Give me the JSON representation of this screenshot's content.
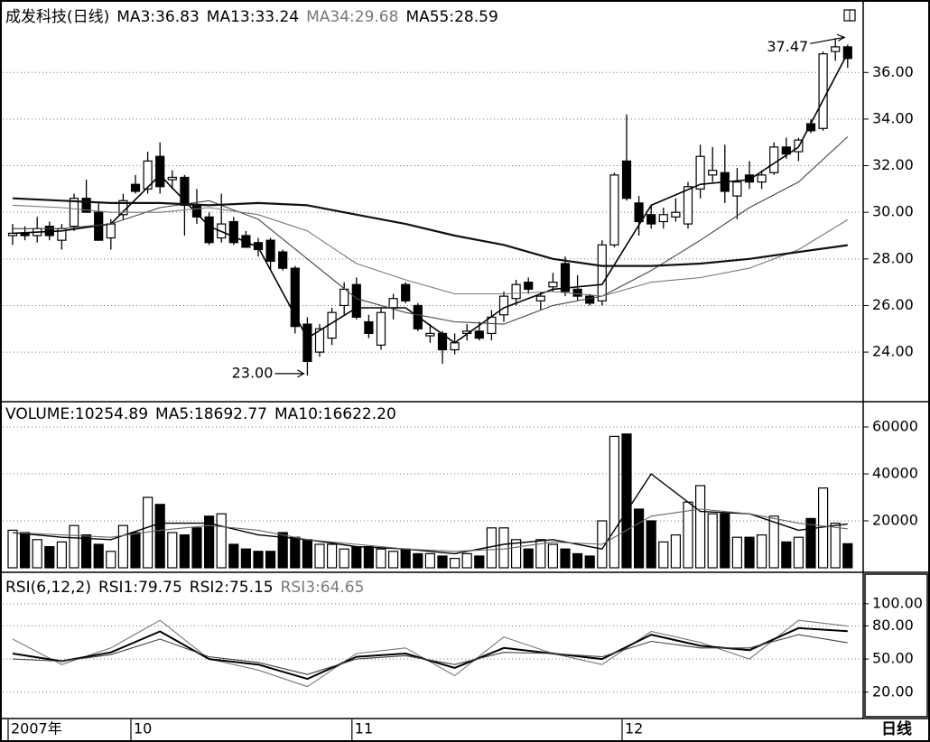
{
  "chart_data": [
    {
      "type": "candlestick",
      "title": "成发科技(日线)",
      "ylim": [
        21.95,
        38.8
      ],
      "grid": true,
      "yticks": [
        {
          "value": 24,
          "label": "24.00"
        },
        {
          "value": 26,
          "label": "26.00"
        },
        {
          "value": 28,
          "label": "28.00"
        },
        {
          "value": 30,
          "label": "30.00"
        },
        {
          "value": 32,
          "label": "32.00"
        },
        {
          "value": 34,
          "label": "34.00"
        },
        {
          "value": 36,
          "label": "36.00"
        }
      ],
      "up_color": "#ffffff",
      "down_color": "#000000",
      "open": [
        29.0,
        29.1,
        29.0,
        29.4,
        28.8,
        29.4,
        30.6,
        30.0,
        28.9,
        29.9,
        31.2,
        31.0,
        32.4,
        31.4,
        31.5,
        30.3,
        29.8,
        28.9,
        29.6,
        29.0,
        28.7,
        28.8,
        28.3,
        27.6,
        25.2,
        24.0,
        24.6,
        26.0,
        26.9,
        25.3,
        24.3,
        25.9,
        26.9,
        26.0,
        24.7,
        24.8,
        24.1,
        24.8,
        24.9,
        24.8,
        25.6,
        26.3,
        27.0,
        26.2,
        26.8,
        27.8,
        26.7,
        26.4,
        26.2,
        28.6,
        32.2,
        30.4,
        29.9,
        29.6,
        29.8,
        29.5,
        31.0,
        31.6,
        31.7,
        30.7,
        31.6,
        31.3,
        31.7,
        32.8,
        32.6,
        33.8,
        33.6,
        36.9,
        37.1
      ],
      "high": [
        29.5,
        29.4,
        29.8,
        29.6,
        29.5,
        30.8,
        31.4,
        30.4,
        29.7,
        30.8,
        31.6,
        32.6,
        33.0,
        31.8,
        31.6,
        31.0,
        30.0,
        30.8,
        29.8,
        29.2,
        28.9,
        28.9,
        28.4,
        27.7,
        25.5,
        25.2,
        25.9,
        27.0,
        27.2,
        25.6,
        25.9,
        26.5,
        27.0,
        26.1,
        25.2,
        24.9,
        24.8,
        25.2,
        25.3,
        25.8,
        26.6,
        27.1,
        27.2,
        26.6,
        27.4,
        28.1,
        27.3,
        26.5,
        28.8,
        31.7,
        34.2,
        30.7,
        30.3,
        30.2,
        30.6,
        31.3,
        32.9,
        32.8,
        32.9,
        31.9,
        32.2,
        31.8,
        33.0,
        33.2,
        33.2,
        34.0,
        36.9,
        37.47,
        37.2
      ],
      "low": [
        28.6,
        28.8,
        28.7,
        28.8,
        28.4,
        29.2,
        30.0,
        28.8,
        28.4,
        29.7,
        30.8,
        30.8,
        30.8,
        31.0,
        29.0,
        29.5,
        28.6,
        28.7,
        28.6,
        28.5,
        28.1,
        27.5,
        27.5,
        24.8,
        23.0,
        23.8,
        24.3,
        25.6,
        25.4,
        24.6,
        24.1,
        25.4,
        26.1,
        24.9,
        24.4,
        23.5,
        23.9,
        24.5,
        24.5,
        24.5,
        25.3,
        26.0,
        26.5,
        25.8,
        26.6,
        26.4,
        26.2,
        26.0,
        26.0,
        28.5,
        30.5,
        29.0,
        29.3,
        29.3,
        29.6,
        29.3,
        30.6,
        31.3,
        30.4,
        29.7,
        31.0,
        31.0,
        31.6,
        32.3,
        32.2,
        33.4,
        33.5,
        36.5,
        36.2
      ],
      "close": [
        29.1,
        29.0,
        29.3,
        29.0,
        29.3,
        30.6,
        30.0,
        28.8,
        29.5,
        30.5,
        30.9,
        32.2,
        31.1,
        31.5,
        30.3,
        29.8,
        28.7,
        29.5,
        28.7,
        28.5,
        28.4,
        27.9,
        27.6,
        25.1,
        23.6,
        25.0,
        25.7,
        26.7,
        25.5,
        24.8,
        25.7,
        26.3,
        26.2,
        25.0,
        24.8,
        24.1,
        24.4,
        24.9,
        24.6,
        25.5,
        26.4,
        26.9,
        26.7,
        26.4,
        27.0,
        26.6,
        26.4,
        26.1,
        28.6,
        31.6,
        30.6,
        29.6,
        29.5,
        29.9,
        30.0,
        31.1,
        32.4,
        31.8,
        30.9,
        31.3,
        31.3,
        31.6,
        32.8,
        32.5,
        33.1,
        33.5,
        36.8,
        37.1,
        36.6
      ],
      "lines": [
        {
          "label": "MA3:36.83",
          "color": "#000000",
          "width": 1.6,
          "x": [
            0,
            4,
            8,
            12,
            16,
            20,
            24,
            28,
            32,
            36,
            40,
            44,
            48,
            52,
            56,
            60,
            64,
            68
          ],
          "values": [
            29.1,
            29.2,
            29.5,
            31.6,
            29.4,
            28.5,
            24.6,
            25.9,
            25.9,
            24.4,
            25.9,
            26.7,
            26.9,
            30.3,
            31.2,
            31.4,
            32.8,
            36.83
          ]
        },
        {
          "label": "MA13:33.24",
          "color": "#444444",
          "width": 1.1,
          "x": [
            0,
            4,
            8,
            12,
            16,
            20,
            24,
            28,
            32,
            36,
            40,
            44,
            48,
            52,
            56,
            60,
            64,
            68
          ],
          "values": [
            29.3,
            29.3,
            29.5,
            30.2,
            30.5,
            29.7,
            28.0,
            26.3,
            25.7,
            25.3,
            25.2,
            26.0,
            26.4,
            27.5,
            28.8,
            30.2,
            31.3,
            33.24
          ]
        },
        {
          "label": "MA34:29.68",
          "color": "#777777",
          "width": 1.1,
          "x": [
            0,
            4,
            8,
            12,
            16,
            20,
            24,
            28,
            32,
            36,
            40,
            44,
            48,
            52,
            56,
            60,
            64,
            68
          ],
          "values": [
            30.3,
            30.2,
            30.0,
            30.0,
            30.2,
            29.9,
            29.2,
            27.8,
            27.1,
            26.5,
            26.5,
            26.6,
            26.4,
            27.0,
            27.2,
            27.6,
            28.4,
            29.68
          ]
        },
        {
          "label": "MA55:28.59",
          "color": "#111111",
          "width": 2.2,
          "x": [
            0,
            4,
            8,
            12,
            16,
            20,
            24,
            28,
            32,
            36,
            40,
            44,
            48,
            52,
            56,
            60,
            64,
            68
          ],
          "values": [
            30.6,
            30.5,
            30.4,
            30.4,
            30.3,
            30.4,
            30.3,
            29.9,
            29.5,
            29.0,
            28.6,
            28.0,
            27.7,
            27.7,
            27.8,
            28.0,
            28.3,
            28.59
          ]
        }
      ],
      "label_colors": [
        "#000000",
        "#000000",
        "#777777",
        "#000000"
      ],
      "annotations": [
        {
          "index": 24,
          "value": 23,
          "label": "23.00",
          "side": "left"
        },
        {
          "index": 67,
          "value": 37.47,
          "label": "37.47",
          "side": "above"
        }
      ]
    },
    {
      "type": "bar",
      "title": "VOLUME:10254.89",
      "ylim": [
        0,
        70000
      ],
      "grid": true,
      "yticks": [
        20000,
        40000,
        60000
      ],
      "values": [
        16000,
        15000,
        12000,
        9000,
        11000,
        18000,
        14000,
        10000,
        7000,
        18000,
        15000,
        30000,
        27000,
        15000,
        14000,
        17000,
        22000,
        23000,
        10000,
        8000,
        7000,
        7000,
        15000,
        13000,
        12000,
        10000,
        10000,
        8000,
        9000,
        9000,
        8000,
        7000,
        8000,
        6000,
        6000,
        5000,
        4000,
        6000,
        5000,
        17000,
        17000,
        12000,
        8000,
        12000,
        10000,
        8000,
        6000,
        5000,
        20000,
        56000,
        57000,
        25000,
        20000,
        11000,
        14000,
        28000,
        35000,
        23000,
        23000,
        13000,
        13000,
        14000,
        22000,
        11000,
        13000,
        21000,
        34000,
        19000,
        10254.89
      ],
      "lines": [
        {
          "label": "MA5:18692.77",
          "color": "#000000",
          "width": 1.4,
          "x": [
            0,
            4,
            8,
            12,
            16,
            20,
            24,
            28,
            32,
            36,
            40,
            44,
            48,
            52,
            56,
            60,
            64,
            68
          ],
          "values": [
            15000,
            13000,
            12000,
            19000,
            19000,
            14000,
            12000,
            9000,
            8000,
            6000,
            10000,
            12000,
            8000,
            40000,
            24000,
            23000,
            16000,
            18692.77
          ]
        },
        {
          "label": "MA10:16622.20",
          "color": "#666666",
          "width": 1.1,
          "x": [
            0,
            4,
            8,
            12,
            16,
            20,
            24,
            28,
            32,
            36,
            40,
            44,
            48,
            52,
            56,
            60,
            64,
            68
          ],
          "values": [
            15000,
            14000,
            13000,
            16000,
            18000,
            16000,
            12000,
            10000,
            8000,
            7000,
            8000,
            11000,
            10000,
            22000,
            25000,
            23000,
            19000,
            16622.2
          ]
        }
      ],
      "label_colors": [
        "#000000",
        "#000000"
      ]
    },
    {
      "type": "line",
      "title": "RSI(6,12,2)",
      "ylim": [
        -3,
        126
      ],
      "grid": true,
      "yticks": [
        {
          "value": 20,
          "label": "20.00"
        },
        {
          "value": 50,
          "label": "50.00"
        },
        {
          "value": 80,
          "label": "80.00"
        },
        {
          "value": 100,
          "label": "100.00"
        }
      ],
      "lines": [
        {
          "label": "RSI1:79.75",
          "color": "#777777",
          "width": 1.1,
          "x": [
            0,
            4,
            8,
            12,
            16,
            20,
            24,
            28,
            32,
            36,
            40,
            44,
            48,
            52,
            56,
            60,
            64,
            68
          ],
          "values": [
            68,
            45,
            60,
            85,
            50,
            40,
            25,
            55,
            60,
            35,
            70,
            55,
            45,
            75,
            65,
            50,
            85,
            79.75
          ]
        },
        {
          "label": "RSI2:75.15",
          "color": "#000000",
          "width": 2,
          "x": [
            0,
            4,
            8,
            12,
            16,
            20,
            24,
            28,
            32,
            36,
            40,
            44,
            48,
            52,
            56,
            60,
            64,
            68
          ],
          "values": [
            55,
            48,
            56,
            75,
            50,
            45,
            32,
            52,
            55,
            42,
            60,
            55,
            50,
            72,
            62,
            58,
            78,
            75.15
          ]
        },
        {
          "label": "RSI3:64.65",
          "color": "#444444",
          "width": 1.1,
          "x": [
            0,
            4,
            8,
            12,
            16,
            20,
            24,
            28,
            32,
            36,
            40,
            44,
            48,
            52,
            56,
            60,
            64,
            68
          ],
          "values": [
            50,
            48,
            54,
            68,
            52,
            47,
            36,
            50,
            53,
            45,
            56,
            55,
            52,
            66,
            60,
            60,
            72,
            64.65
          ]
        }
      ],
      "label_colors": [
        "#000000",
        "#000000",
        "#777777"
      ]
    }
  ],
  "date_axis": {
    "labels": [
      {
        "index": 0,
        "label": "2007年"
      },
      {
        "index": 10,
        "label": "10"
      },
      {
        "index": 28,
        "label": "11"
      },
      {
        "index": 50,
        "label": "12"
      }
    ],
    "period": "日线"
  }
}
